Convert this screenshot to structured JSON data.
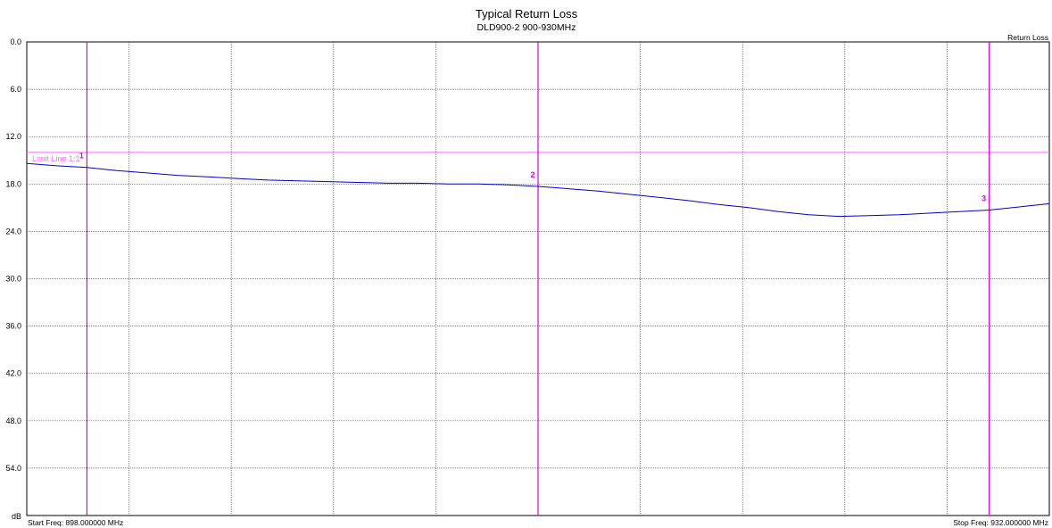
{
  "chart_data": {
    "type": "line",
    "title": "Typical Return Loss",
    "subtitle": "DLD900-2   900-930MHz",
    "trace_label": "Return Loss",
    "y_unit_label": "dB",
    "start_label": "Start Freq: 898.000000 MHz",
    "stop_label": "Stop Freq: 932.000000 MHz",
    "xlim": [
      898,
      932
    ],
    "ylim": [
      0,
      60
    ],
    "y_inverted": true,
    "y_ticks": [
      "0.0",
      "6.0",
      "12.0",
      "18.0",
      "24.0",
      "30.0",
      "36.0",
      "42.0",
      "48.0",
      "54.0"
    ],
    "y_tick_values": [
      0,
      6,
      12,
      18,
      24,
      30,
      36,
      42,
      48,
      54
    ],
    "x_gridlines": [
      901.4,
      904.8,
      908.2,
      911.6,
      915.0,
      918.4,
      921.8,
      925.2,
      928.6
    ],
    "grid": true,
    "trace_color": "#0000cc",
    "marker_color": "#e000e0",
    "limit_line": {
      "label": "Limit Line 1:1",
      "value": 14.0,
      "color": "#ff66ff"
    },
    "markers": [
      {
        "label": "1",
        "x": 900.0
      },
      {
        "label": "2",
        "x": 915.0
      },
      {
        "label": "3",
        "x": 930.0
      }
    ],
    "series": [
      {
        "x": [
          898,
          899,
          900,
          901,
          902,
          903,
          904,
          905,
          906,
          907,
          908,
          909,
          910,
          911,
          912,
          913,
          914,
          915,
          916,
          917,
          918,
          919,
          920,
          921,
          922,
          923,
          924,
          925,
          926,
          927,
          928,
          929,
          930,
          931,
          932
        ],
        "values": [
          15.4,
          15.7,
          15.9,
          16.3,
          16.6,
          16.9,
          17.1,
          17.3,
          17.5,
          17.6,
          17.7,
          17.8,
          17.9,
          17.9,
          18.0,
          18.0,
          18.1,
          18.3,
          18.6,
          18.9,
          19.3,
          19.7,
          20.1,
          20.6,
          21.0,
          21.5,
          21.9,
          22.1,
          22.0,
          21.9,
          21.7,
          21.5,
          21.3,
          20.9,
          20.5
        ]
      }
    ]
  }
}
